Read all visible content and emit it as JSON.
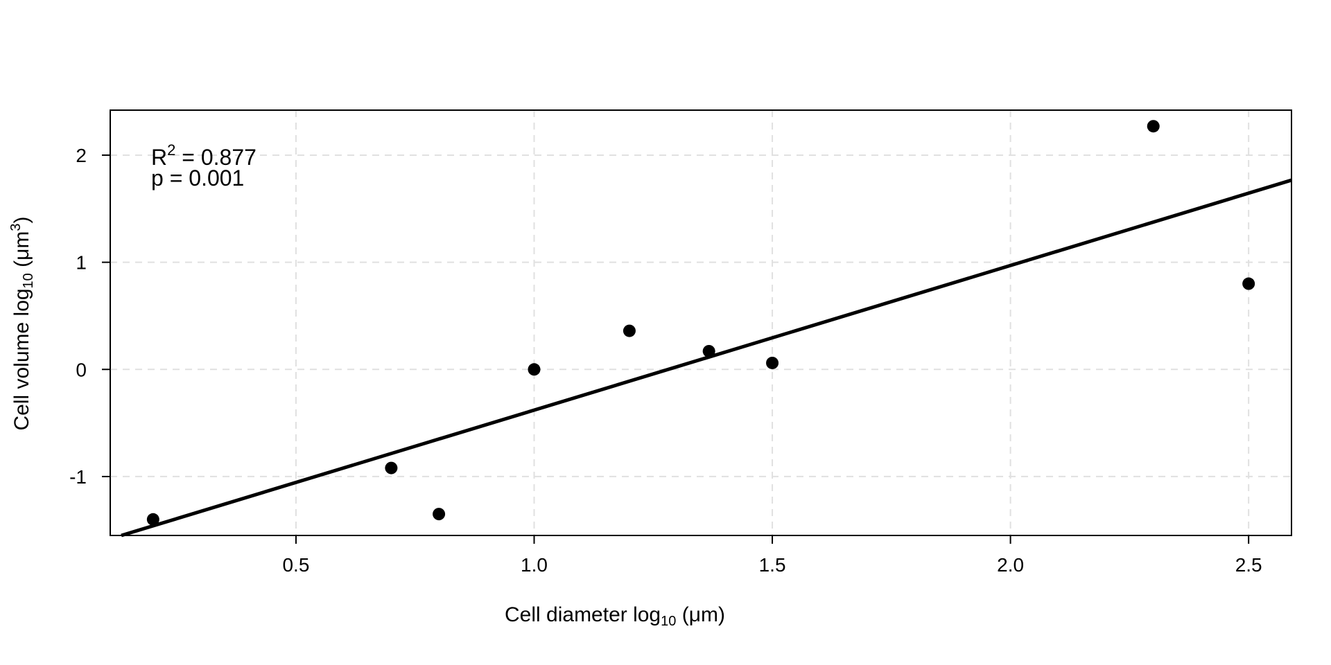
{
  "chart_data": {
    "type": "scatter",
    "title": "",
    "xlabel": {
      "prefix": "Cell diameter log",
      "sub": "10",
      "suffix": " (μm)"
    },
    "ylabel": {
      "prefix": "Cell volume log",
      "sub": "10",
      "unit": " (μm",
      "sup": "3",
      "close": ")"
    },
    "xlim": [
      0.11,
      2.59
    ],
    "ylim": [
      -1.55,
      2.42
    ],
    "xticks": [
      0.5,
      1.0,
      1.5,
      2.0,
      2.5
    ],
    "xtick_labels": [
      "0.5",
      "1.0",
      "1.5",
      "2.0",
      "2.5"
    ],
    "yticks": [
      -1,
      0,
      1,
      2
    ],
    "ytick_labels": [
      "-1",
      "0",
      "1",
      "2"
    ],
    "grid": true,
    "grid_style": "dashed",
    "grid_color": "#e0e0e0",
    "point_color": "#000000",
    "points": [
      {
        "x": 0.2,
        "y": -1.4
      },
      {
        "x": 0.7,
        "y": -0.92
      },
      {
        "x": 0.8,
        "y": -1.35
      },
      {
        "x": 1.0,
        "y": 0.0
      },
      {
        "x": 1.2,
        "y": 0.36
      },
      {
        "x": 1.367,
        "y": 0.17
      },
      {
        "x": 1.5,
        "y": 0.06
      },
      {
        "x": 2.3,
        "y": 2.27
      },
      {
        "x": 2.5,
        "y": 0.8
      }
    ],
    "fit_line": {
      "slope": 1.35,
      "intercept": -1.73
    },
    "annotations": {
      "r2_label": "R",
      "r2_sup": "2",
      "r2_value": " =  0.877",
      "p_label": "p =  0.001"
    }
  }
}
